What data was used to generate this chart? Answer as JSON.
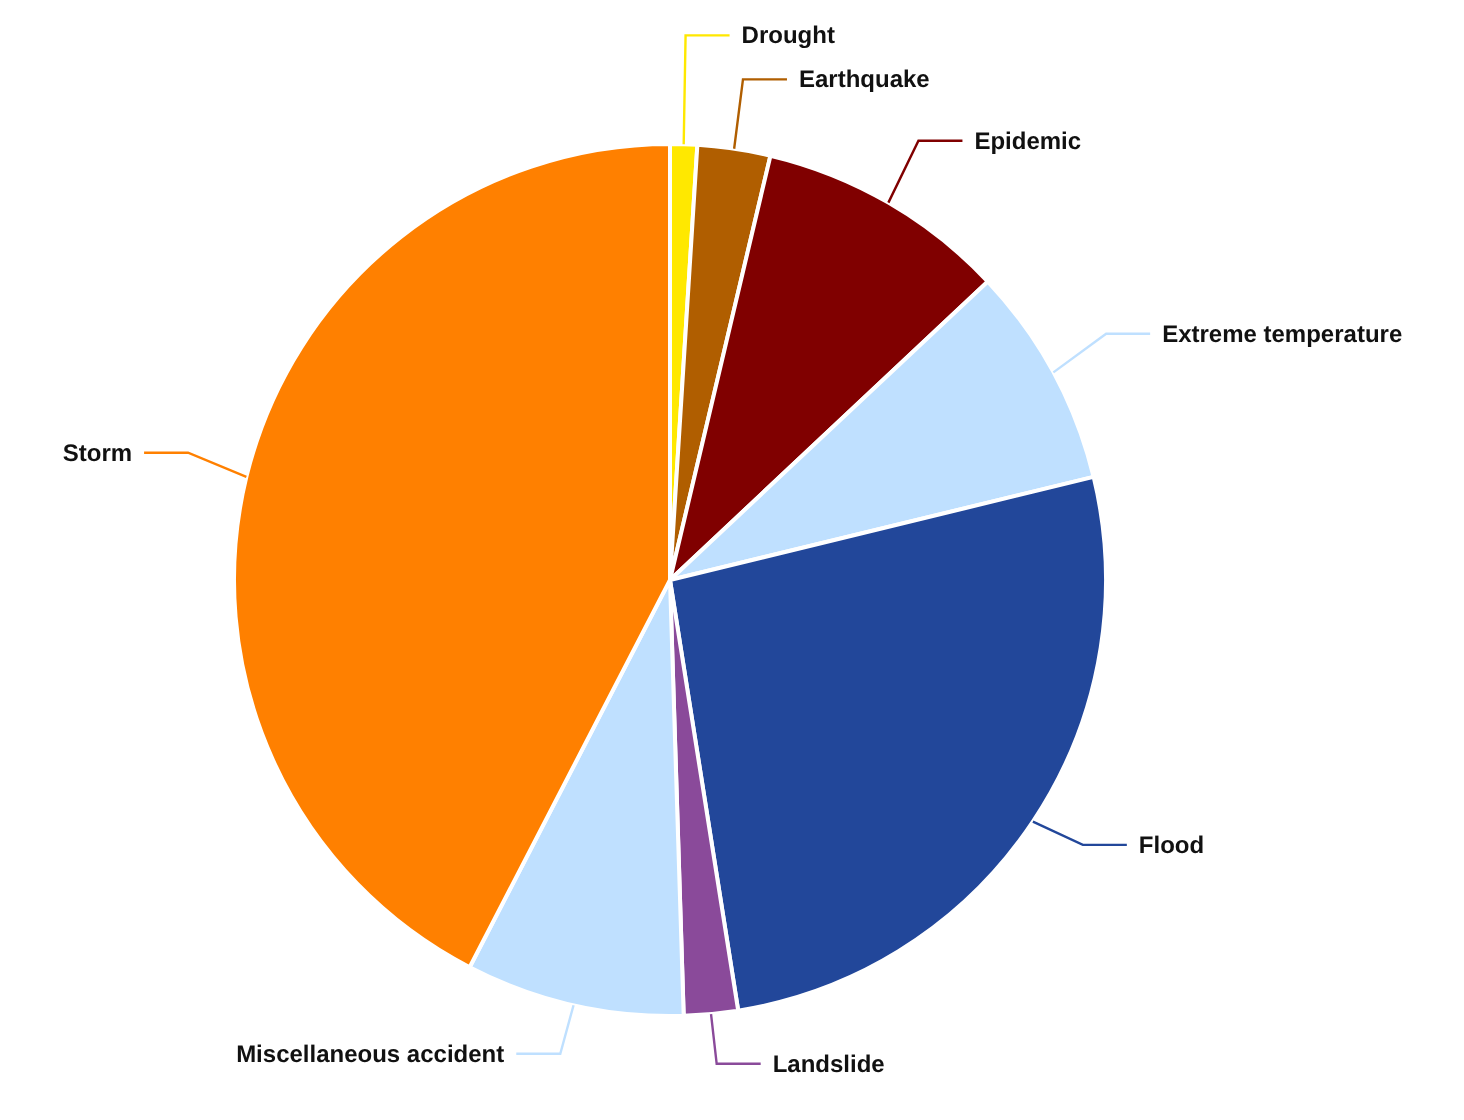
{
  "chart_data": {
    "type": "pie",
    "categories": [
      "Drought",
      "Earthquake",
      "Epidemic",
      "Extreme temperature",
      "Flood",
      "Landslide",
      "Miscellaneous accident",
      "Storm"
    ],
    "values": [
      1,
      2.7,
      9.3,
      8.2,
      26.3,
      2,
      8.1,
      42.4
    ],
    "colors": [
      "#ffe800",
      "#b05e00",
      "#800000",
      "#bfe0ff",
      "#22479a",
      "#8a4a9a",
      "#bfe0ff",
      "#ff8000"
    ],
    "legend": false
  }
}
